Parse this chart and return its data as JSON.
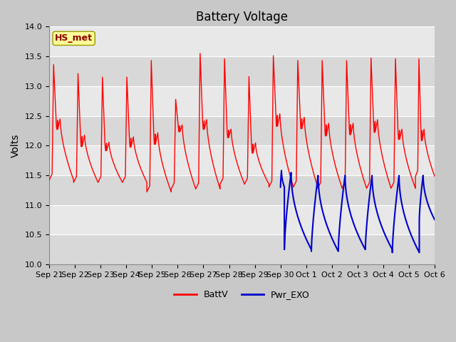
{
  "title": "Battery Voltage",
  "ylabel": "Volts",
  "ylim": [
    10.0,
    14.0
  ],
  "yticks": [
    10.0,
    10.5,
    11.0,
    11.5,
    12.0,
    12.5,
    13.0,
    13.5,
    14.0
  ],
  "xlabels": [
    "Sep 21",
    "Sep 22",
    "Sep 23",
    "Sep 24",
    "Sep 25",
    "Sep 26",
    "Sep 27",
    "Sep 28",
    "Sep 29",
    "Sep 30",
    "Oct 1",
    "Oct 2",
    "Oct 3",
    "Oct 4",
    "Oct 5",
    "Oct 6"
  ],
  "annotation_text": "HS_met",
  "annotation_color": "#8b0000",
  "annotation_bg": "#ffff99",
  "annotation_border": "#999900",
  "line_red_color": "#ff0000",
  "line_blue_color": "#0000cc",
  "fig_bg_color": "#c8c8c8",
  "plot_bg_light": "#e8e8e8",
  "plot_bg_dark": "#d8d8d8",
  "grid_color": "#ffffff",
  "legend_labels": [
    "BattV",
    "Pwr_EXO"
  ],
  "title_fontsize": 12,
  "tick_fontsize": 8,
  "ylabel_fontsize": 10
}
